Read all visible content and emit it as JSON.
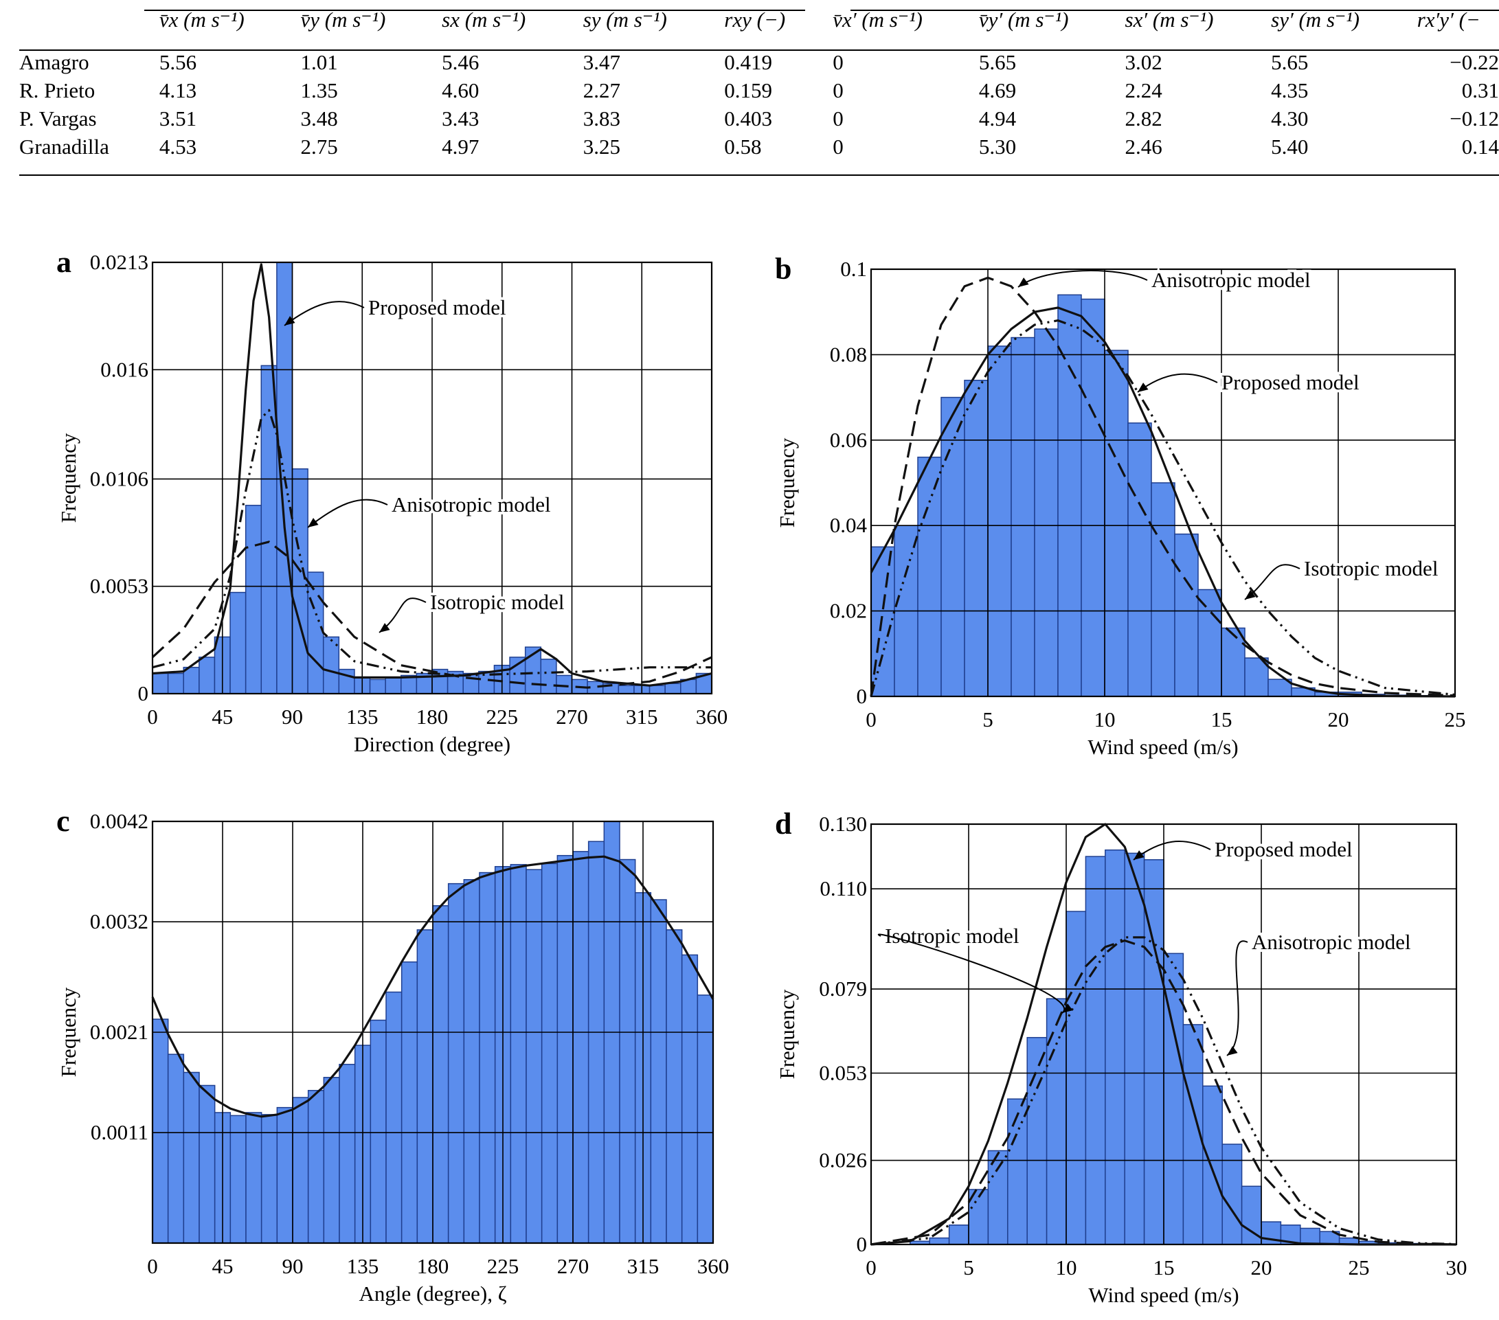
{
  "table": {
    "headers": [
      "",
      "v̄x (m s⁻¹)",
      "v̄y (m s⁻¹)",
      "sx (m s⁻¹)",
      "sy (m s⁻¹)",
      "rxy (−)",
      "v̄x′ (m s⁻¹)",
      "v̄y′ (m s⁻¹)",
      "sx′ (m s⁻¹)",
      "sy′ (m s⁻¹)",
      "rx′y′ (−"
    ],
    "rows": [
      [
        "Amagro",
        "5.56",
        "1.01",
        "5.46",
        "3.47",
        "0.419",
        "0",
        "5.65",
        "3.02",
        "5.65",
        "−0.22"
      ],
      [
        "R. Prieto",
        "4.13",
        "1.35",
        "4.60",
        "2.27",
        "0.159",
        "0",
        "4.69",
        "2.24",
        "4.35",
        "0.31"
      ],
      [
        "P. Vargas",
        "3.51",
        "3.48",
        "3.43",
        "3.83",
        "0.403",
        "0",
        "4.94",
        "2.82",
        "4.30",
        "−0.12"
      ],
      [
        "Granadilla",
        "4.53",
        "2.75",
        "4.97",
        "3.25",
        "0.58",
        "0",
        "5.30",
        "2.46",
        "5.40",
        "0.14"
      ]
    ]
  },
  "colors": {
    "bar_fill": "#5b8ded",
    "bar_stroke": "#1f3f8f",
    "grid": "#000000",
    "curve": "#111111"
  },
  "chart_data": [
    {
      "panel": "a",
      "type": "bar",
      "xlabel": "Direction (degree)",
      "ylabel": "Frequency",
      "xlim": [
        0,
        360
      ],
      "ylim": [
        0,
        0.0213
      ],
      "xticks": [
        "0",
        "45",
        "90",
        "135",
        "180",
        "225",
        "270",
        "315",
        "360"
      ],
      "yticks": [
        [
          0,
          "0"
        ],
        [
          0.0053,
          "0.0053"
        ],
        [
          0.0106,
          "0.0106"
        ],
        [
          0.016,
          "0.016"
        ],
        [
          0.0213,
          "0.0213"
        ]
      ],
      "bins": {
        "start": 0,
        "width": 10,
        "values": [
          0.001,
          0.001,
          0.0013,
          0.0018,
          0.0028,
          0.005,
          0.0093,
          0.0162,
          0.0213,
          0.0111,
          0.006,
          0.0028,
          0.0012,
          0.0008,
          0.0007,
          0.0008,
          0.0009,
          0.001,
          0.0012,
          0.0011,
          0.001,
          0.0011,
          0.0014,
          0.0018,
          0.0023,
          0.0017,
          0.0009,
          0.0007,
          0.0006,
          0.0005,
          0.0004,
          0.0004,
          0.0004,
          0.0005,
          0.0007,
          0.001
        ]
      },
      "series": [
        {
          "name": "Proposed model",
          "dash": "solid",
          "x": [
            0,
            20,
            40,
            50,
            55,
            60,
            65,
            70,
            75,
            80,
            85,
            90,
            100,
            110,
            130,
            160,
            200,
            230,
            240,
            250,
            260,
            270,
            290,
            320,
            340,
            360
          ],
          "y": [
            0.001,
            0.0011,
            0.0022,
            0.0052,
            0.0097,
            0.015,
            0.0194,
            0.0212,
            0.0186,
            0.0132,
            0.0082,
            0.0048,
            0.002,
            0.0012,
            0.0008,
            0.0008,
            0.0009,
            0.0012,
            0.0017,
            0.0022,
            0.0017,
            0.001,
            0.0006,
            0.0004,
            0.0006,
            0.001
          ]
        },
        {
          "name": "Anisotropic model",
          "dash": "dashdotdot",
          "x": [
            0,
            20,
            40,
            50,
            60,
            70,
            75,
            80,
            90,
            100,
            110,
            130,
            160,
            200,
            240,
            280,
            320,
            340,
            360
          ],
          "y": [
            0.0013,
            0.0017,
            0.0032,
            0.0058,
            0.01,
            0.0136,
            0.014,
            0.0128,
            0.0086,
            0.005,
            0.003,
            0.0016,
            0.0011,
            0.0009,
            0.001,
            0.0011,
            0.0013,
            0.0013,
            0.0013
          ]
        },
        {
          "name": "Isotropic model",
          "dash": "dashed",
          "x": [
            0,
            20,
            40,
            60,
            75,
            90,
            110,
            130,
            160,
            200,
            240,
            280,
            320,
            340,
            360
          ],
          "y": [
            0.0018,
            0.0032,
            0.0055,
            0.0072,
            0.0075,
            0.0066,
            0.0045,
            0.0028,
            0.0014,
            0.0008,
            0.0005,
            0.0003,
            0.0006,
            0.0011,
            0.0018
          ]
        }
      ],
      "annotations": [
        "Proposed model",
        "Anisotropic model",
        "Isotropic model"
      ]
    },
    {
      "panel": "b",
      "type": "bar",
      "xlabel": "Wind speed (m/s)",
      "ylabel": "Frequency",
      "xlim": [
        0,
        25
      ],
      "ylim": [
        0,
        0.1
      ],
      "xticks": [
        "0",
        "5",
        "10",
        "15",
        "20",
        "25"
      ],
      "yticks": [
        [
          0,
          "0"
        ],
        [
          0.02,
          "0.02"
        ],
        [
          0.04,
          "0.04"
        ],
        [
          0.06,
          "0.06"
        ],
        [
          0.08,
          "0.08"
        ],
        [
          0.1,
          "0.1"
        ]
      ],
      "bins": {
        "start": 0,
        "width": 1,
        "values": [
          0.035,
          0.04,
          0.056,
          0.07,
          0.074,
          0.082,
          0.084,
          0.086,
          0.094,
          0.093,
          0.081,
          0.064,
          0.05,
          0.038,
          0.025,
          0.016,
          0.009,
          0.004,
          0.002,
          0.001,
          0.001,
          0.0005,
          0.0003,
          0.0002,
          0.0001
        ]
      },
      "series": [
        {
          "name": "Proposed model",
          "dash": "solid",
          "x": [
            0,
            1,
            2,
            3,
            4,
            5,
            6,
            7,
            8,
            9,
            10,
            11,
            12,
            13,
            14,
            15,
            16,
            17,
            18,
            19,
            20,
            22,
            25
          ],
          "y": [
            0.029,
            0.039,
            0.05,
            0.061,
            0.071,
            0.08,
            0.086,
            0.09,
            0.091,
            0.089,
            0.083,
            0.074,
            0.062,
            0.048,
            0.034,
            0.022,
            0.013,
            0.007,
            0.003,
            0.0014,
            0.0006,
            0.0001,
            0.0
          ]
        },
        {
          "name": "Anisotropic model",
          "dash": "dashed",
          "x": [
            0,
            1,
            2,
            3,
            4,
            5,
            6,
            7,
            8,
            9,
            10,
            11,
            12,
            13,
            14,
            15,
            16,
            17,
            18,
            19,
            20,
            22,
            25
          ],
          "y": [
            0.0,
            0.04,
            0.068,
            0.087,
            0.096,
            0.098,
            0.096,
            0.09,
            0.082,
            0.072,
            0.061,
            0.05,
            0.04,
            0.031,
            0.023,
            0.017,
            0.012,
            0.008,
            0.005,
            0.003,
            0.002,
            0.0008,
            0.0002
          ]
        },
        {
          "name": "Isotropic model",
          "dash": "dashdotdot",
          "x": [
            0,
            1,
            2,
            3,
            4,
            5,
            6,
            7,
            8,
            9,
            10,
            11,
            12,
            13,
            14,
            15,
            16,
            17,
            18,
            19,
            20,
            22,
            25
          ],
          "y": [
            0.0,
            0.02,
            0.038,
            0.053,
            0.066,
            0.076,
            0.083,
            0.087,
            0.088,
            0.086,
            0.082,
            0.075,
            0.066,
            0.056,
            0.046,
            0.036,
            0.027,
            0.02,
            0.014,
            0.009,
            0.006,
            0.002,
            0.0004
          ]
        }
      ],
      "annotations": [
        "Anisotropic model",
        "Proposed model",
        "Isotropic model"
      ]
    },
    {
      "panel": "c",
      "type": "bar",
      "xlabel": "Angle (degree), ζ",
      "ylabel": "Frequency",
      "xlim": [
        0,
        360
      ],
      "ylim": [
        0,
        0.0042
      ],
      "xticks": [
        "0",
        "45",
        "90",
        "135",
        "180",
        "225",
        "270",
        "315",
        "360"
      ],
      "yticks": [
        [
          0.0011,
          "0.0011"
        ],
        [
          0.0021,
          "0.0021"
        ],
        [
          0.0032,
          "0.0032"
        ],
        [
          0.0042,
          "0.0042"
        ]
      ],
      "bins": {
        "start": 0,
        "width": 10,
        "values": [
          0.00223,
          0.00188,
          0.0017,
          0.00157,
          0.0013,
          0.00127,
          0.0013,
          0.00128,
          0.00135,
          0.00145,
          0.00152,
          0.00165,
          0.00178,
          0.00197,
          0.00222,
          0.0025,
          0.0028,
          0.00312,
          0.00336,
          0.00358,
          0.00362,
          0.00369,
          0.00375,
          0.00377,
          0.00372,
          0.00378,
          0.00386,
          0.0039,
          0.004,
          0.00423,
          0.00382,
          0.00349,
          0.00342,
          0.00312,
          0.00287,
          0.00247
        ]
      },
      "series": [
        {
          "name": "",
          "dash": "solid",
          "x": [
            0,
            10,
            20,
            30,
            40,
            50,
            60,
            70,
            80,
            90,
            100,
            110,
            120,
            130,
            140,
            150,
            160,
            170,
            180,
            190,
            200,
            210,
            220,
            230,
            240,
            250,
            260,
            270,
            280,
            290,
            300,
            310,
            320,
            330,
            340,
            350,
            360
          ],
          "y": [
            0.00245,
            0.00208,
            0.00178,
            0.00157,
            0.00143,
            0.00134,
            0.00129,
            0.00126,
            0.00128,
            0.00133,
            0.00142,
            0.00156,
            0.00174,
            0.00197,
            0.00224,
            0.00252,
            0.0028,
            0.00306,
            0.00327,
            0.00344,
            0.00356,
            0.00364,
            0.00369,
            0.00373,
            0.00376,
            0.00378,
            0.0038,
            0.00382,
            0.00384,
            0.00385,
            0.0038,
            0.00366,
            0.00345,
            0.00322,
            0.00298,
            0.0027,
            0.00243
          ]
        }
      ],
      "annotations": []
    },
    {
      "panel": "d",
      "type": "bar",
      "xlabel": "Wind speed (m/s)",
      "ylabel": "Frequency",
      "xlim": [
        0,
        30
      ],
      "ylim": [
        0,
        0.13
      ],
      "xticks": [
        "0",
        "5",
        "10",
        "15",
        "20",
        "25",
        "30"
      ],
      "yticks": [
        [
          0,
          "0"
        ],
        [
          0.026,
          "0.026"
        ],
        [
          0.053,
          "0.053"
        ],
        [
          0.079,
          "0.079"
        ],
        [
          0.11,
          "0.110"
        ],
        [
          0.13,
          "0.130"
        ]
      ],
      "bins": {
        "start": 0,
        "width": 1,
        "values": [
          0,
          0,
          0.001,
          0.002,
          0.006,
          0.017,
          0.029,
          0.045,
          0.064,
          0.076,
          0.103,
          0.12,
          0.122,
          0.121,
          0.119,
          0.09,
          0.068,
          0.049,
          0.031,
          0.018,
          0.007,
          0.006,
          0.005,
          0.004,
          0.002,
          0.001,
          0.0005,
          0.0003,
          0.0002,
          0.0001
        ]
      },
      "series": [
        {
          "name": "Proposed model",
          "dash": "solid",
          "x": [
            0,
            2,
            4,
            5,
            6,
            7,
            8,
            9,
            10,
            11,
            12,
            13,
            14,
            15,
            16,
            17,
            18,
            19,
            20,
            22,
            25,
            30
          ],
          "y": [
            0.0,
            0.001,
            0.008,
            0.018,
            0.032,
            0.05,
            0.07,
            0.092,
            0.112,
            0.126,
            0.13,
            0.123,
            0.105,
            0.08,
            0.053,
            0.031,
            0.015,
            0.006,
            0.002,
            0.0003,
            0.0,
            0.0
          ]
        },
        {
          "name": "Anisotropic model",
          "dash": "dashed",
          "x": [
            0,
            3,
            5,
            7,
            9,
            10,
            11,
            12,
            13,
            14,
            15,
            16,
            17,
            18,
            19,
            20,
            22,
            24,
            26,
            28,
            30
          ],
          "y": [
            0.0,
            0.003,
            0.013,
            0.033,
            0.061,
            0.075,
            0.086,
            0.092,
            0.094,
            0.092,
            0.085,
            0.074,
            0.06,
            0.046,
            0.033,
            0.022,
            0.009,
            0.003,
            0.0008,
            0.0002,
            0.0
          ]
        },
        {
          "name": "Isotropic model",
          "dash": "dashdotdot",
          "x": [
            0,
            3,
            5,
            7,
            9,
            10,
            11,
            12,
            13,
            14,
            15,
            16,
            17,
            18,
            19,
            20,
            22,
            24,
            26,
            28,
            30
          ],
          "y": [
            0.0,
            0.002,
            0.01,
            0.028,
            0.055,
            0.069,
            0.081,
            0.09,
            0.095,
            0.095,
            0.091,
            0.082,
            0.07,
            0.056,
            0.042,
            0.03,
            0.013,
            0.005,
            0.0015,
            0.0004,
            0.0001
          ]
        }
      ],
      "annotations": [
        "Proposed model",
        "Isotropic model",
        "Anisotropic model"
      ]
    }
  ]
}
